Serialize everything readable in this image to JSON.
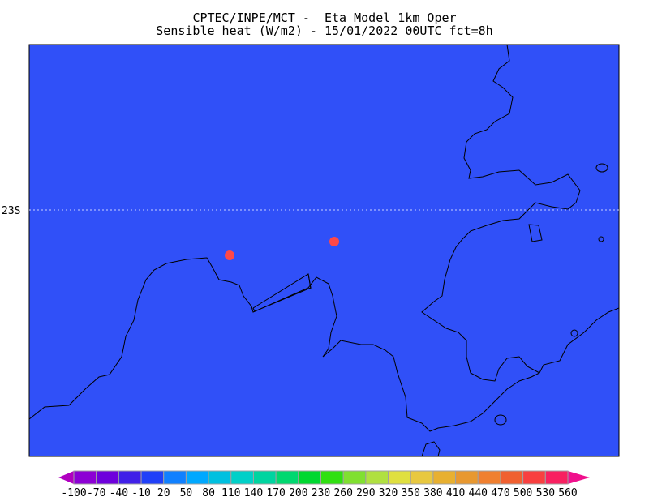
{
  "header": {
    "line1": "CPTEC/INPE/MCT -  Eta Model 1km Oper",
    "line2": "Sensible heat (W/m2) - 15/01/2022 00UTC fct=8h"
  },
  "map": {
    "field_color": "#3050f8",
    "latitude_label": "23S",
    "coastline_color": "#000000",
    "marker_color": "#ff4848",
    "marker_count": 2
  },
  "colorbar": {
    "labels": [
      "-100",
      "-70",
      "-40",
      "-10",
      "20",
      "50",
      "80",
      "110",
      "140",
      "170",
      "200",
      "230",
      "260",
      "290",
      "320",
      "350",
      "380",
      "410",
      "440",
      "470",
      "500",
      "530",
      "560"
    ],
    "colors": [
      "#8c00d4",
      "#6e00dc",
      "#4020e8",
      "#2040f8",
      "#1080ff",
      "#00a8ff",
      "#00c0e0",
      "#00d0c8",
      "#00d4a0",
      "#00d870",
      "#00d830",
      "#30e010",
      "#80e030",
      "#b0e040",
      "#e0e040",
      "#e8c840",
      "#e8b030",
      "#e89830",
      "#f08030",
      "#f06030",
      "#f84040",
      "#f82060"
    ],
    "under_color": "#b000c0",
    "over_color": "#f0108c"
  }
}
